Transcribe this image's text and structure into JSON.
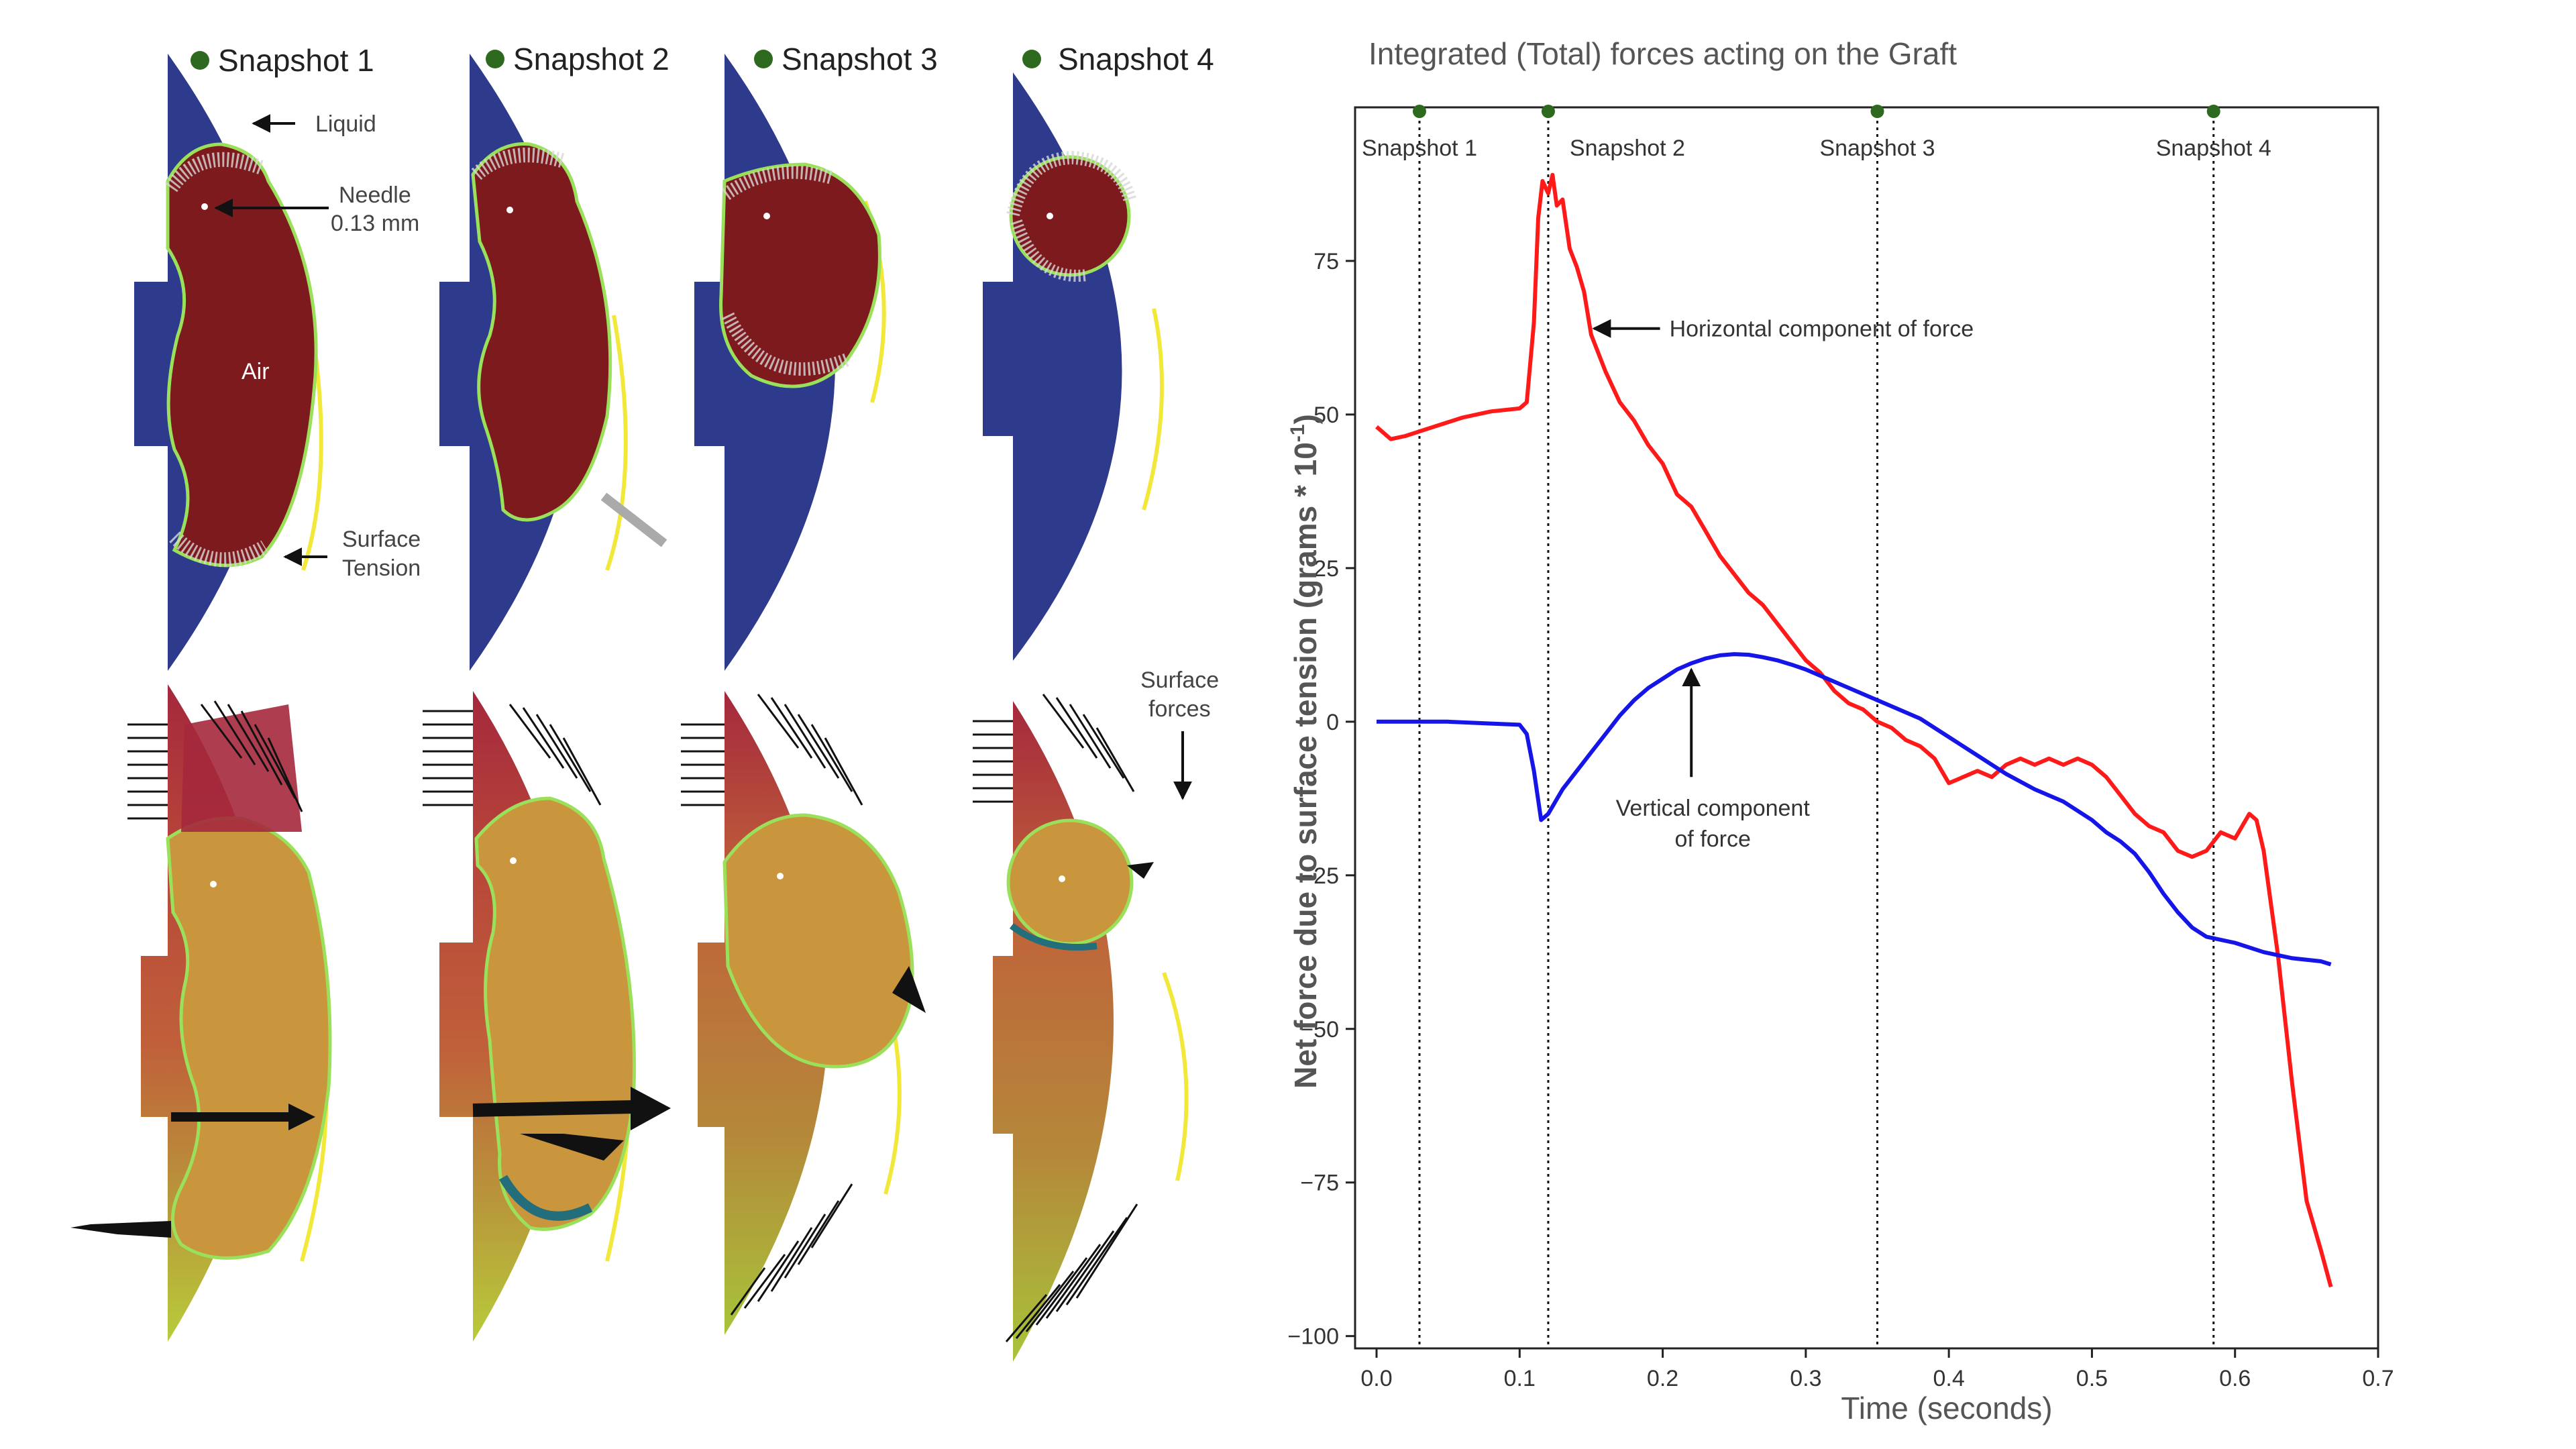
{
  "figure": {
    "snapshots": [
      {
        "label": "Snapshot 1"
      },
      {
        "label": "Snapshot 2"
      },
      {
        "label": "Snapshot 3"
      },
      {
        "label": "Snapshot 4"
      }
    ],
    "annotations": {
      "liquid": "Liquid",
      "needle_line1": "Needle",
      "needle_line2": "0.13 mm",
      "air": "Air",
      "surface_tension_line1": "Surface",
      "surface_tension_line2": "Tension",
      "surface_forces_line1": "Surface",
      "surface_forces_line2": "forces"
    },
    "colors": {
      "liquid": "#2e3a8c",
      "air": "#7d1a1e",
      "interface": "#9be05a",
      "wall": "#f2e83a",
      "droplet": "#c9963e",
      "field_top": "#a4283c",
      "field_mid": "#c0603a",
      "field_low": "#b6c83a",
      "marker": "#2d6a1f"
    }
  },
  "chart_data": {
    "type": "line",
    "title": "Integrated (Total) forces acting on the Graft",
    "xlabel": "Time (seconds)",
    "ylabel_main": "Net force due to surface tension (grams  * 10",
    "ylabel_sup": "-1",
    "ylabel_close": ")",
    "xlim": [
      -0.015,
      0.7
    ],
    "ylim": [
      -102,
      100
    ],
    "xticks": [
      0.0,
      0.1,
      0.2,
      0.3,
      0.4,
      0.5,
      0.6,
      0.7
    ],
    "xtick_labels": [
      "0.0",
      "0.1",
      "0.2",
      "0.3",
      "0.4",
      "0.5",
      "0.6",
      "0.7"
    ],
    "yticks": [
      75,
      50,
      25,
      0,
      -25,
      -50,
      -75,
      -100
    ],
    "ytick_labels": [
      "75",
      "50",
      "25",
      "0",
      "−25",
      "−50",
      "−75",
      "−100"
    ],
    "snapshot_lines": [
      {
        "x": 0.03,
        "label": "Snapshot 1"
      },
      {
        "x": 0.12,
        "label": "Snapshot 2"
      },
      {
        "x": 0.35,
        "label": "Snapshot 3"
      },
      {
        "x": 0.585,
        "label": "Snapshot 4"
      }
    ],
    "annotations": [
      {
        "text": "Horizontal component of force",
        "x": 0.152,
        "y": 64
      },
      {
        "text": "Vertical component",
        "text2": "of force",
        "x": 0.22,
        "y": 9
      }
    ],
    "series": [
      {
        "name": "Horizontal component of force",
        "color": "#ff1a1a",
        "x": [
          0.0,
          0.01,
          0.02,
          0.04,
          0.06,
          0.08,
          0.1,
          0.105,
          0.11,
          0.113,
          0.116,
          0.12,
          0.123,
          0.126,
          0.13,
          0.135,
          0.14,
          0.145,
          0.15,
          0.155,
          0.16,
          0.17,
          0.18,
          0.19,
          0.2,
          0.21,
          0.22,
          0.23,
          0.24,
          0.25,
          0.26,
          0.27,
          0.28,
          0.29,
          0.3,
          0.31,
          0.32,
          0.33,
          0.34,
          0.35,
          0.36,
          0.37,
          0.38,
          0.39,
          0.4,
          0.41,
          0.42,
          0.43,
          0.44,
          0.45,
          0.46,
          0.47,
          0.48,
          0.49,
          0.5,
          0.51,
          0.52,
          0.53,
          0.54,
          0.55,
          0.56,
          0.57,
          0.58,
          0.59,
          0.6,
          0.61,
          0.615,
          0.62,
          0.63,
          0.64,
          0.65,
          0.66,
          0.667
        ],
        "y": [
          48,
          46,
          46.5,
          48,
          49.5,
          50.5,
          51,
          52,
          65,
          82,
          88,
          86,
          89,
          84,
          85,
          77,
          74,
          70,
          63,
          60,
          57,
          52,
          49,
          45,
          42,
          37,
          35,
          31,
          27,
          24,
          21,
          19,
          16,
          13,
          10,
          8,
          5,
          3,
          2,
          0,
          -1,
          -3,
          -4,
          -6,
          -10,
          -9,
          -8,
          -9,
          -7,
          -6,
          -7,
          -6,
          -7,
          -6,
          -7,
          -9,
          -12,
          -15,
          -17,
          -18,
          -21,
          -22,
          -21,
          -18,
          -19,
          -15,
          -16,
          -21,
          -38,
          -59,
          -78,
          -86,
          -92
        ]
      },
      {
        "name": "Vertical component of force",
        "color": "#1515e8",
        "x": [
          0.0,
          0.02,
          0.05,
          0.08,
          0.1,
          0.105,
          0.11,
          0.115,
          0.12,
          0.125,
          0.13,
          0.14,
          0.15,
          0.16,
          0.17,
          0.18,
          0.19,
          0.2,
          0.21,
          0.22,
          0.23,
          0.24,
          0.25,
          0.26,
          0.27,
          0.28,
          0.29,
          0.3,
          0.32,
          0.34,
          0.36,
          0.38,
          0.4,
          0.42,
          0.44,
          0.46,
          0.48,
          0.5,
          0.51,
          0.52,
          0.53,
          0.54,
          0.55,
          0.56,
          0.57,
          0.58,
          0.6,
          0.62,
          0.64,
          0.66,
          0.667
        ],
        "y": [
          0,
          0,
          0,
          -0.3,
          -0.5,
          -2,
          -8,
          -16,
          -15,
          -13,
          -11,
          -8,
          -5,
          -2,
          1,
          3.5,
          5.5,
          7,
          8.5,
          9.5,
          10.3,
          10.8,
          11,
          10.9,
          10.5,
          10,
          9.3,
          8.5,
          6.5,
          4.5,
          2.5,
          0.5,
          -2.5,
          -5.5,
          -8.5,
          -11,
          -13,
          -16,
          -18,
          -19.5,
          -21.5,
          -24.5,
          -28,
          -31,
          -33.5,
          -35,
          -36,
          -37.5,
          -38.5,
          -39,
          -39.5
        ]
      }
    ]
  }
}
